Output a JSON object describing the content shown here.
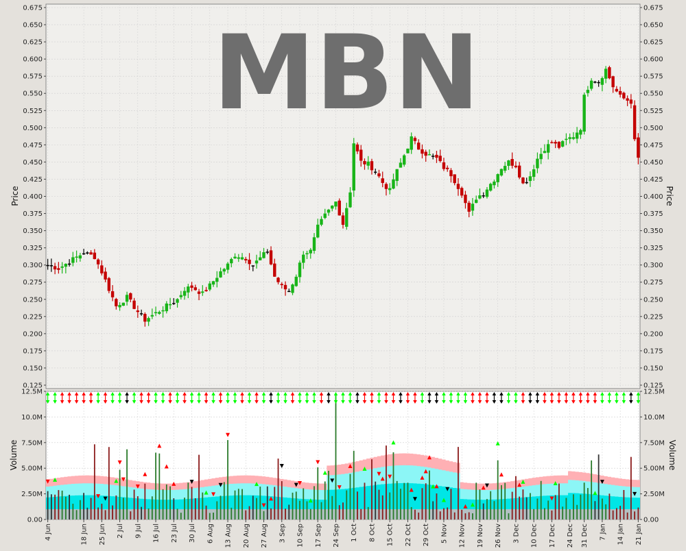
{
  "watermark": "MBN",
  "colors": {
    "up": "#18b418",
    "down": "#c40000",
    "neutral": "#000000",
    "plot_bg": "#f0efec",
    "volume_bg": "#ffffff",
    "grid": "#cfcfcf",
    "band_pink": "#ffb0b4",
    "band_cyan": "#8cf6f6",
    "band_aqua": "#00e6e6",
    "signal_green": "#00ff00",
    "signal_red": "#ff0000"
  },
  "price_panel": {
    "ylabel_left": "Price",
    "ylabel_right": "Price",
    "ylim": [
      0.12,
      0.68
    ],
    "yticks": [
      "0.125",
      "0.150",
      "0.175",
      "0.200",
      "0.225",
      "0.250",
      "0.275",
      "0.300",
      "0.325",
      "0.350",
      "0.375",
      "0.400",
      "0.425",
      "0.450",
      "0.475",
      "0.500",
      "0.525",
      "0.550",
      "0.575",
      "0.600",
      "0.625",
      "0.650",
      "0.675"
    ]
  },
  "volume_panel": {
    "ylabel_left": "Volume",
    "ylabel_right": "Volume",
    "ylim": [
      0,
      12500000
    ],
    "yticks": [
      {
        "label": "0.00",
        "value": 0
      },
      {
        "label": "2.50M",
        "value": 2500000
      },
      {
        "label": "5.00M",
        "value": 5000000
      },
      {
        "label": "7.50M",
        "value": 7500000
      },
      {
        "label": "10.0M",
        "value": 10000000
      },
      {
        "label": "12.5M",
        "value": 12500000
      }
    ]
  },
  "x_axis": {
    "n_bars": 165,
    "labels": [
      {
        "label": "4 Jun",
        "i": 0
      },
      {
        "label": "18 Jun",
        "i": 10
      },
      {
        "label": "25 Jun",
        "i": 15
      },
      {
        "label": "2 Jul",
        "i": 20
      },
      {
        "label": "9 Jul",
        "i": 25
      },
      {
        "label": "16 Jul",
        "i": 30
      },
      {
        "label": "23 Jul",
        "i": 35
      },
      {
        "label": "30 Jul",
        "i": 40
      },
      {
        "label": "6 Aug",
        "i": 45
      },
      {
        "label": "13 Aug",
        "i": 50
      },
      {
        "label": "20 Aug",
        "i": 55
      },
      {
        "label": "27 Aug",
        "i": 60
      },
      {
        "label": "3 Sep",
        "i": 65
      },
      {
        "label": "10 Sep",
        "i": 70
      },
      {
        "label": "17 Sep",
        "i": 75
      },
      {
        "label": "24 Sep",
        "i": 80
      },
      {
        "label": "1 Oct",
        "i": 85
      },
      {
        "label": "8 Oct",
        "i": 90
      },
      {
        "label": "15 Oct",
        "i": 95
      },
      {
        "label": "22 Oct",
        "i": 100
      },
      {
        "label": "29 Oct",
        "i": 105
      },
      {
        "label": "5 Nov",
        "i": 110
      },
      {
        "label": "12 Nov",
        "i": 115
      },
      {
        "label": "19 Nov",
        "i": 120
      },
      {
        "label": "26 Nov",
        "i": 125
      },
      {
        "label": "3 Dec",
        "i": 130
      },
      {
        "label": "10 Dec",
        "i": 135
      },
      {
        "label": "17 Dec",
        "i": 140
      },
      {
        "label": "24 Dec",
        "i": 145
      },
      {
        "label": "31 Dec",
        "i": 149
      },
      {
        "label": "7 Jan",
        "i": 154
      },
      {
        "label": "14 Jan",
        "i": 159
      },
      {
        "label": "21 Jan",
        "i": 164
      }
    ]
  },
  "chart_data": {
    "type": "candlestick",
    "title": "",
    "price_keypoints": [
      [
        0,
        0.3
      ],
      [
        3,
        0.295
      ],
      [
        6,
        0.305
      ],
      [
        10,
        0.318
      ],
      [
        13,
        0.312
      ],
      [
        15,
        0.29
      ],
      [
        17,
        0.265
      ],
      [
        19,
        0.24
      ],
      [
        22,
        0.253
      ],
      [
        25,
        0.232
      ],
      [
        27,
        0.22
      ],
      [
        30,
        0.23
      ],
      [
        33,
        0.24
      ],
      [
        36,
        0.25
      ],
      [
        38,
        0.265
      ],
      [
        40,
        0.268
      ],
      [
        43,
        0.258
      ],
      [
        45,
        0.27
      ],
      [
        48,
        0.29
      ],
      [
        50,
        0.3
      ],
      [
        52,
        0.315
      ],
      [
        55,
        0.31
      ],
      [
        57,
        0.3
      ],
      [
        59,
        0.31
      ],
      [
        61,
        0.32
      ],
      [
        63,
        0.283
      ],
      [
        65,
        0.268
      ],
      [
        67,
        0.262
      ],
      [
        69,
        0.285
      ],
      [
        71,
        0.318
      ],
      [
        73,
        0.32
      ],
      [
        75,
        0.355
      ],
      [
        77,
        0.372
      ],
      [
        80,
        0.392
      ],
      [
        82,
        0.36
      ],
      [
        84,
        0.408
      ],
      [
        85,
        0.478
      ],
      [
        87,
        0.45
      ],
      [
        89,
        0.447
      ],
      [
        91,
        0.437
      ],
      [
        93,
        0.42
      ],
      [
        95,
        0.408
      ],
      [
        96,
        0.425
      ],
      [
        99,
        0.46
      ],
      [
        101,
        0.485
      ],
      [
        103,
        0.47
      ],
      [
        105,
        0.462
      ],
      [
        108,
        0.455
      ],
      [
        110,
        0.442
      ],
      [
        112,
        0.432
      ],
      [
        115,
        0.405
      ],
      [
        117,
        0.375
      ],
      [
        119,
        0.398
      ],
      [
        121,
        0.405
      ],
      [
        124,
        0.425
      ],
      [
        126,
        0.442
      ],
      [
        128,
        0.45
      ],
      [
        130,
        0.445
      ],
      [
        132,
        0.418
      ],
      [
        134,
        0.43
      ],
      [
        136,
        0.455
      ],
      [
        138,
        0.47
      ],
      [
        140,
        0.478
      ],
      [
        142,
        0.472
      ],
      [
        144,
        0.482
      ],
      [
        146,
        0.488
      ],
      [
        148,
        0.5
      ],
      [
        149,
        0.545
      ],
      [
        151,
        0.572
      ],
      [
        153,
        0.567
      ],
      [
        155,
        0.585
      ],
      [
        157,
        0.56
      ],
      [
        159,
        0.545
      ],
      [
        161,
        0.54
      ],
      [
        162,
        0.538
      ],
      [
        163,
        0.48
      ],
      [
        164,
        0.455
      ]
    ],
    "volume_scale": [
      0,
      12500000
    ],
    "note_series": [
      "price_bars",
      "volume_bars",
      "volume_bands",
      "signal_markers"
    ]
  }
}
